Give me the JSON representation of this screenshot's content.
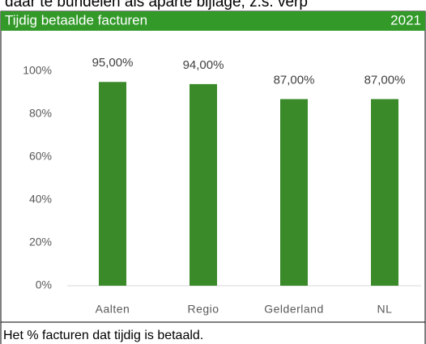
{
  "context_text": "daar te bundelen als aparte bijlage, z.s. verp",
  "chart_data": {
    "type": "bar",
    "title": "Tijdig betaalde facturen",
    "year": "2021",
    "caption": "Het % facturen dat tijdig is betaald.",
    "categories": [
      "Aalten",
      "Regio",
      "Gelderland",
      "NL"
    ],
    "values": [
      95,
      94,
      87,
      87
    ],
    "value_labels": [
      "95,00%",
      "94,00%",
      "87,00%",
      "87,00%"
    ],
    "color": "#3b8a2a",
    "ylim": [
      0,
      100
    ],
    "yticks": [
      {
        "value": 0,
        "label": "0%"
      },
      {
        "value": 20,
        "label": "20%"
      },
      {
        "value": 40,
        "label": "40%"
      },
      {
        "value": 60,
        "label": "60%"
      },
      {
        "value": 80,
        "label": "80%"
      },
      {
        "value": 100,
        "label": "100%"
      }
    ],
    "grid": false
  }
}
